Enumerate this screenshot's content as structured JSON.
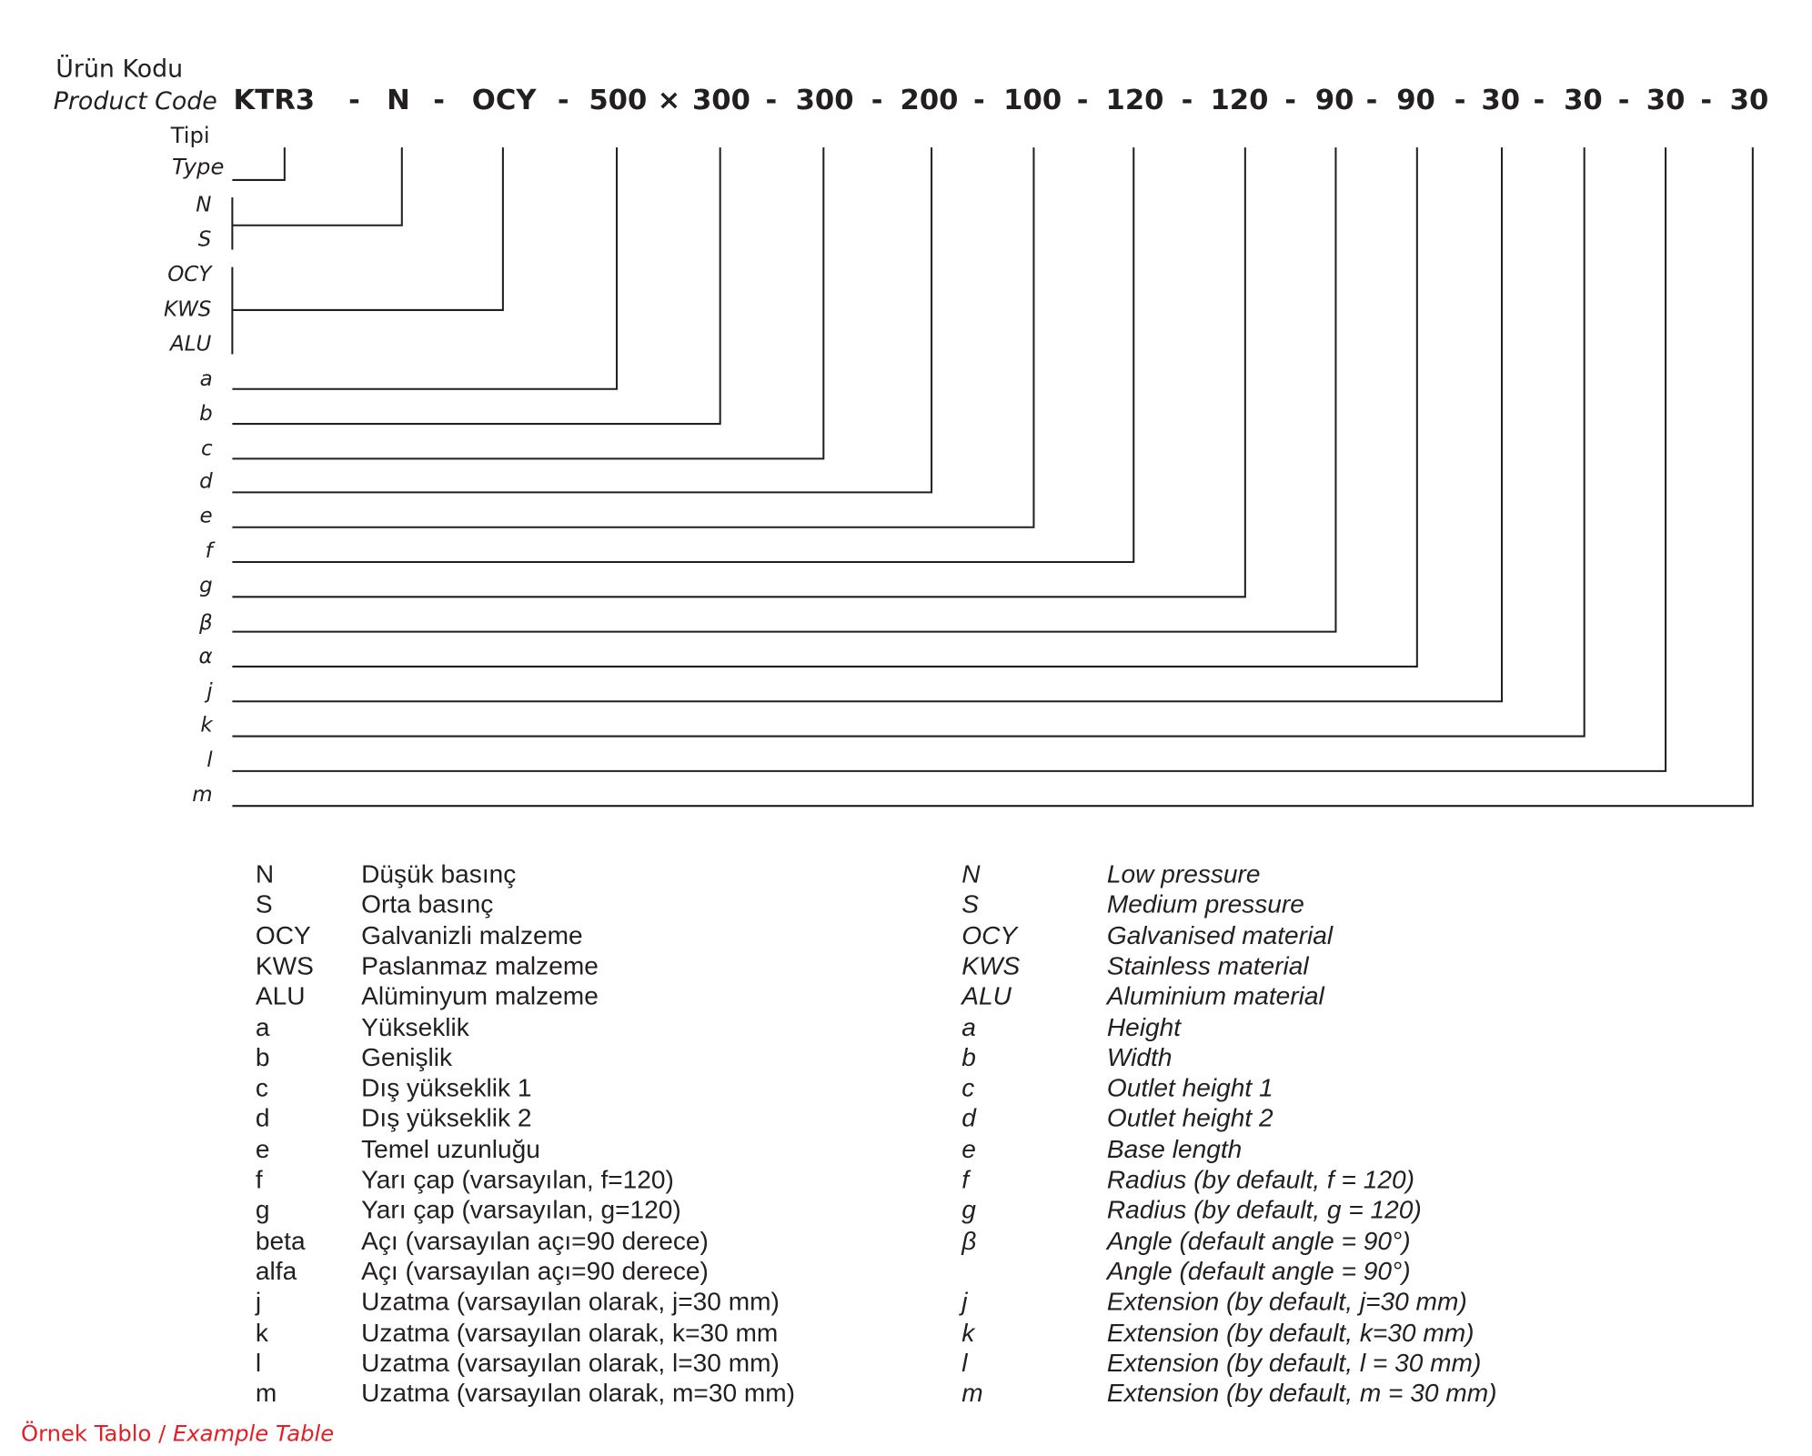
{
  "header": {
    "label_tr": "Ürün Kodu",
    "label_en": "Product Code"
  },
  "code_tokens": [
    "KTR3",
    "-",
    "N",
    "-",
    "OCY",
    "-",
    "500",
    "×",
    "300",
    "-",
    "300",
    "-",
    "200",
    "-",
    "100",
    "-",
    "120",
    "-",
    "120",
    "-",
    "90",
    "-",
    "90",
    "-",
    "30",
    "-",
    "30",
    "-",
    "30",
    "-",
    "30"
  ],
  "type_labels": {
    "tr": "Tipi",
    "en": "Type"
  },
  "diagram_labels": [
    "N",
    "S",
    "OCY",
    "KWS",
    "ALU",
    "a",
    "b",
    "c",
    "d",
    "e",
    "f",
    "g",
    "β",
    "α",
    "j",
    "k",
    "l",
    "m"
  ],
  "legend": [
    {
      "code": "N",
      "tr": "Düşük basınç",
      "code_en": "N",
      "en": "Low pressure"
    },
    {
      "code": "S",
      "tr": "Orta basınç",
      "code_en": "S",
      "en": "Medium pressure"
    },
    {
      "code": "OCY",
      "tr": "Galvanizli malzeme",
      "code_en": "OCY",
      "en": "Galvanised material"
    },
    {
      "code": "KWS",
      "tr": "Paslanmaz malzeme",
      "code_en": "KWS",
      "en": "Stainless material"
    },
    {
      "code": "ALU",
      "tr": "Alüminyum malzeme",
      "code_en": "ALU",
      "en": "Aluminium material"
    },
    {
      "code": "a",
      "tr": "Yükseklik",
      "code_en": "a",
      "en": "Height"
    },
    {
      "code": "b",
      "tr": "Genişlik",
      "code_en": "b",
      "en": "Width"
    },
    {
      "code": "c",
      "tr": "Dış yükseklik 1",
      "code_en": "c",
      "en": "Outlet height 1"
    },
    {
      "code": "d",
      "tr": "Dış yükseklik 2",
      "code_en": "d",
      "en": "Outlet height 2"
    },
    {
      "code": "e",
      "tr": "Temel uzunluğu",
      "code_en": "e",
      "en": "Base length"
    },
    {
      "code": "f",
      "tr": "Yarı çap (varsayılan, f=120)",
      "code_en": "f",
      "en": "Radius (by default, f = 120)"
    },
    {
      "code": "g",
      "tr": "Yarı çap (varsayılan, g=120)",
      "code_en": "g",
      "en": "Radius (by default, g = 120)"
    },
    {
      "code": "beta",
      "tr": "Açı (varsayılan açı=90 derece)",
      "code_en": "β",
      "en": "Angle (default angle = 90°)"
    },
    {
      "code": "alfa",
      "tr": "Açı (varsayılan açı=90 derece)",
      "code_en": "",
      "en": "Angle (default angle = 90°)"
    },
    {
      "code": "j",
      "tr": "Uzatma (varsayılan olarak, j=30 mm)",
      "code_en": "j",
      "en": "Extension (by default, j=30 mm)"
    },
    {
      "code": "k",
      "tr": "Uzatma (varsayılan olarak, k=30 mm",
      "code_en": "k",
      "en": "Extension (by default, k=30 mm)"
    },
    {
      "code": "l",
      "tr": "Uzatma (varsayılan olarak, l=30 mm)",
      "code_en": "l",
      "en": "Extension (by default, l = 30 mm)"
    },
    {
      "code": "m",
      "tr": "Uzatma (varsayılan olarak, m=30 mm)",
      "code_en": "m",
      "en": "Extension (by default, m = 30 mm)"
    }
  ],
  "footer": {
    "tr": "Örnek Tablo",
    "sep": " / ",
    "en": "Example Table"
  },
  "colors": {
    "text": "#231f20",
    "accent": "#e31e24"
  }
}
